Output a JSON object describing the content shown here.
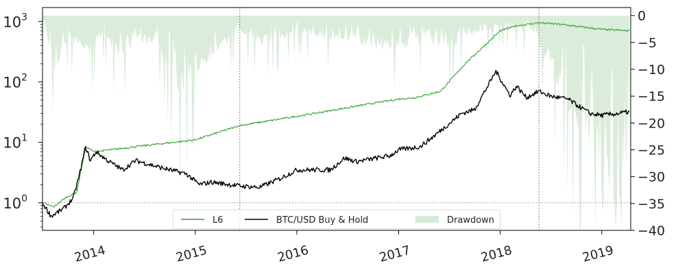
{
  "chart_data": {
    "type": "line",
    "title": "",
    "xlabel": "",
    "ylabel_left": "",
    "ylabel_right": "",
    "x_axis": {
      "type": "date",
      "range": [
        "2013-07-01",
        "2019-04-15"
      ],
      "tick_labels": [
        "2014",
        "2015",
        "2016",
        "2017",
        "2018",
        "2019"
      ],
      "tick_dates": [
        "2014-01-01",
        "2015-01-01",
        "2016-01-01",
        "2017-01-01",
        "2018-01-01",
        "2019-01-01"
      ],
      "tick_rotation_deg": -15
    },
    "y_left": {
      "scale": "log",
      "range": [
        0.35,
        1700
      ],
      "ticks": [
        1,
        10,
        100,
        1000
      ],
      "tick_labels": [
        {
          "base": "10",
          "exp": "0"
        },
        {
          "base": "10",
          "exp": "1"
        },
        {
          "base": "10",
          "exp": "2"
        },
        {
          "base": "10",
          "exp": "3"
        }
      ]
    },
    "y_right": {
      "scale": "linear",
      "range": [
        -40,
        1.5
      ],
      "ticks": [
        0,
        -5,
        -10,
        -15,
        -20,
        -25,
        -30,
        -35,
        -40
      ],
      "tick_labels": [
        "0",
        "−5",
        "−10",
        "−15",
        "−20",
        "−25",
        "−30",
        "−35",
        "−40"
      ]
    },
    "reference_lines": {
      "horizontal_left_axis_value": 1,
      "horizontal_right_axis_value": -35,
      "vertical_dates": [
        "2015-06-10",
        "2018-05-20"
      ]
    },
    "grid": false,
    "legend": {
      "placement": "bottom-center",
      "entries": [
        "L6",
        "BTC/USD Buy & Hold",
        "Drawdown"
      ]
    },
    "series": [
      {
        "name": "L6",
        "axis": "left",
        "color": "#2ca02c",
        "points": [
          [
            "2013-07-01",
            1.0
          ],
          [
            "2013-08-10",
            0.85
          ],
          [
            "2013-09-20",
            1.2
          ],
          [
            "2013-11-01",
            1.5
          ],
          [
            "2013-11-25",
            5.5
          ],
          [
            "2013-12-05",
            8.5
          ],
          [
            "2014-01-01",
            7.0
          ],
          [
            "2014-03-01",
            7.5
          ],
          [
            "2014-06-01",
            8.5
          ],
          [
            "2014-09-01",
            9.5
          ],
          [
            "2015-01-01",
            11.0
          ],
          [
            "2015-06-10",
            19.0
          ],
          [
            "2015-10-01",
            23.0
          ],
          [
            "2016-03-01",
            30.0
          ],
          [
            "2016-09-01",
            42.0
          ],
          [
            "2017-01-01",
            52.0
          ],
          [
            "2017-03-01",
            55.0
          ],
          [
            "2017-06-01",
            70.0
          ],
          [
            "2017-09-01",
            210.0
          ],
          [
            "2017-11-01",
            380.0
          ],
          [
            "2018-01-01",
            700.0
          ],
          [
            "2018-03-01",
            850.0
          ],
          [
            "2018-05-20",
            950.0
          ],
          [
            "2018-08-01",
            900.0
          ],
          [
            "2018-11-01",
            800.0
          ],
          [
            "2019-01-01",
            740.0
          ],
          [
            "2019-04-10",
            700.0
          ]
        ]
      },
      {
        "name": "BTC/USD Buy & Hold",
        "axis": "left",
        "color": "#000000",
        "points": [
          [
            "2013-07-01",
            1.0
          ],
          [
            "2013-08-01",
            0.6
          ],
          [
            "2013-09-15",
            0.8
          ],
          [
            "2013-10-20",
            1.2
          ],
          [
            "2013-11-15",
            3.5
          ],
          [
            "2013-12-03",
            8.5
          ],
          [
            "2013-12-20",
            5.0
          ],
          [
            "2014-01-10",
            7.0
          ],
          [
            "2014-02-20",
            5.0
          ],
          [
            "2014-04-15",
            3.5
          ],
          [
            "2014-06-01",
            5.0
          ],
          [
            "2014-09-01",
            3.8
          ],
          [
            "2014-12-01",
            3.0
          ],
          [
            "2015-01-15",
            2.0
          ],
          [
            "2015-03-01",
            2.2
          ],
          [
            "2015-06-10",
            1.9
          ],
          [
            "2015-08-20",
            1.8
          ],
          [
            "2015-11-01",
            2.5
          ],
          [
            "2016-01-01",
            3.5
          ],
          [
            "2016-05-01",
            3.5
          ],
          [
            "2016-06-20",
            5.5
          ],
          [
            "2016-08-01",
            4.8
          ],
          [
            "2016-12-01",
            6.0
          ],
          [
            "2017-01-01",
            7.5
          ],
          [
            "2017-03-20",
            8.5
          ],
          [
            "2017-05-01",
            12.0
          ],
          [
            "2017-08-15",
            30.0
          ],
          [
            "2017-10-01",
            35.0
          ],
          [
            "2017-12-17",
            150.0
          ],
          [
            "2018-02-05",
            60.0
          ],
          [
            "2018-03-01",
            85.0
          ],
          [
            "2018-04-05",
            55.0
          ],
          [
            "2018-05-20",
            70.0
          ],
          [
            "2018-07-01",
            58.0
          ],
          [
            "2018-09-01",
            52.0
          ],
          [
            "2018-11-20",
            30.0
          ],
          [
            "2019-01-01",
            28.0
          ],
          [
            "2019-03-01",
            30.0
          ],
          [
            "2019-04-10",
            32.0
          ]
        ]
      },
      {
        "name": "Drawdown",
        "axis": "right",
        "color": "#d7ead7",
        "points": [
          [
            "2013-07-01",
            0
          ],
          [
            "2013-08-15",
            -10
          ],
          [
            "2013-10-01",
            -4
          ],
          [
            "2013-12-20",
            -7
          ],
          [
            "2014-02-01",
            -3
          ],
          [
            "2014-04-01",
            -8
          ],
          [
            "2014-06-01",
            -4
          ],
          [
            "2014-09-01",
            -6
          ],
          [
            "2014-11-15",
            -16
          ],
          [
            "2015-01-01",
            -10
          ],
          [
            "2015-03-01",
            -7
          ],
          [
            "2015-06-10",
            -3
          ],
          [
            "2015-09-01",
            -5
          ],
          [
            "2016-01-01",
            -3
          ],
          [
            "2016-05-01",
            -4
          ],
          [
            "2016-08-01",
            -5
          ],
          [
            "2017-01-01",
            -6
          ],
          [
            "2017-04-01",
            -4
          ],
          [
            "2017-07-01",
            -6
          ],
          [
            "2017-10-01",
            -3
          ],
          [
            "2018-01-01",
            -2
          ],
          [
            "2018-05-01",
            -3
          ],
          [
            "2018-06-15",
            -8
          ],
          [
            "2018-08-15",
            -14
          ],
          [
            "2018-10-01",
            -19
          ],
          [
            "2018-12-01",
            -24
          ],
          [
            "2019-01-15",
            -34
          ],
          [
            "2019-03-01",
            -32
          ],
          [
            "2019-04-10",
            -26
          ]
        ]
      }
    ]
  }
}
